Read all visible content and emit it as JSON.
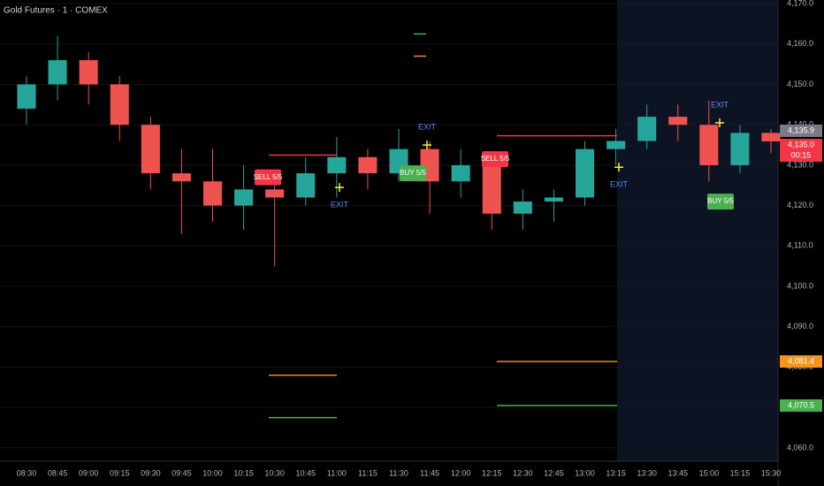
{
  "chart_data": {
    "type": "candlestick",
    "title": "Gold Futures · 1 · COMEX",
    "categories": [
      "08:30",
      "08:45",
      "09:00",
      "09:15",
      "09:30",
      "09:45",
      "10:00",
      "10:15",
      "10:30",
      "10:45",
      "11:00",
      "11:15",
      "11:30",
      "11:45",
      "12:00",
      "12:15",
      "12:30",
      "12:45",
      "13:00",
      "13:15",
      "13:30",
      "13:45",
      "15:00",
      "15:15",
      "15:30"
    ],
    "open": [
      4144,
      4150,
      4156,
      4150,
      4140,
      4128,
      4126,
      4120,
      4124,
      4122,
      4128,
      4132,
      4128,
      4134,
      4126,
      4130,
      4118,
      4121,
      4122,
      4134,
      4136,
      4142,
      4140,
      4130,
      4138
    ],
    "high": [
      4152,
      4162,
      4158,
      4152,
      4142,
      4134,
      4134,
      4130,
      4128,
      4132,
      4137,
      4134,
      4139,
      4136,
      4134,
      4132,
      4124,
      4124,
      4136,
      4139,
      4145,
      4145,
      4146,
      4140,
      4139
    ],
    "low": [
      4140,
      4146,
      4145,
      4136,
      4124,
      4113,
      4116,
      4114,
      4105,
      4120,
      4122,
      4124,
      4126,
      4118,
      4122,
      4114,
      4114,
      4116,
      4120,
      4130,
      4134,
      4136,
      4126,
      4128,
      4133
    ],
    "close": [
      4150,
      4156,
      4150,
      4140,
      4128,
      4126,
      4120,
      4124,
      4122,
      4128,
      4132,
      4128,
      4134,
      4126,
      4130,
      4118,
      4121,
      4122,
      4134,
      4136,
      4142,
      4140,
      4130,
      4138,
      4135.9
    ],
    "up_color": "#26a69a",
    "down_color": "#ef5350",
    "ylim": [
      4056.7,
      4170.9
    ],
    "yticks": [
      {
        "value": 4060,
        "label": "4,060.0"
      },
      {
        "value": 4070,
        "label": "4,070.0"
      },
      {
        "value": 4080,
        "label": "4,080.0"
      },
      {
        "value": 4090,
        "label": "4,090.0"
      },
      {
        "value": 4100,
        "label": "4,100.0"
      },
      {
        "value": 4110,
        "label": "4,110.0"
      },
      {
        "value": 4120,
        "label": "4,120.0"
      },
      {
        "value": 4130,
        "label": "4,130.0"
      },
      {
        "value": 4140,
        "label": "4,140.0"
      },
      {
        "value": 4150,
        "label": "4,150.0"
      },
      {
        "value": 4160,
        "label": "4,160.0"
      },
      {
        "value": 4170,
        "label": "4,170.0"
      }
    ],
    "grid": true,
    "levels": [
      {
        "value": 4132.5,
        "color": "#f23645"
      },
      {
        "value": 4078,
        "color": "#f7813d"
      },
      {
        "value": 4067.5,
        "color": "#4caf50"
      },
      {
        "value": 4137.3,
        "color": "#f23645"
      },
      {
        "value": 4081.4,
        "color": "#f7813d"
      },
      {
        "value": 4070.5,
        "color": "#4caf50"
      },
      {
        "value": 4162.5,
        "color": "#4caf50"
      },
      {
        "value": 4157,
        "color": "#f7813d"
      }
    ],
    "markers": [
      {
        "text": "SELL 5/5",
        "value": 4127,
        "kind": "sell"
      },
      {
        "text": "EXIT",
        "value": 4124.5,
        "kind": "exit"
      },
      {
        "text": "BUY 5/5",
        "value": 4128,
        "kind": "buy"
      },
      {
        "text": "EXIT",
        "value": 4135,
        "kind": "exit"
      },
      {
        "text": "SELL 5/5",
        "value": 4131.5,
        "kind": "sell"
      },
      {
        "text": "EXIT",
        "value": 4129.5,
        "kind": "exit"
      },
      {
        "text": "BUY 5/5",
        "value": 4121,
        "kind": "buy"
      },
      {
        "text": "EXIT",
        "value": 4140.5,
        "kind": "exit"
      }
    ],
    "price_labels": [
      {
        "value": 4135.9,
        "label": "4,135.9",
        "color": "#787b86"
      },
      {
        "value": 4135.0,
        "label": "4,135.0",
        "color": "#f23645"
      },
      {
        "value": 4081.4,
        "label": "4,081.4",
        "color": "#f7931a"
      },
      {
        "value": 4070.5,
        "label": "4,070.5",
        "color": "#4caf50"
      }
    ],
    "countdown": "00:15"
  }
}
